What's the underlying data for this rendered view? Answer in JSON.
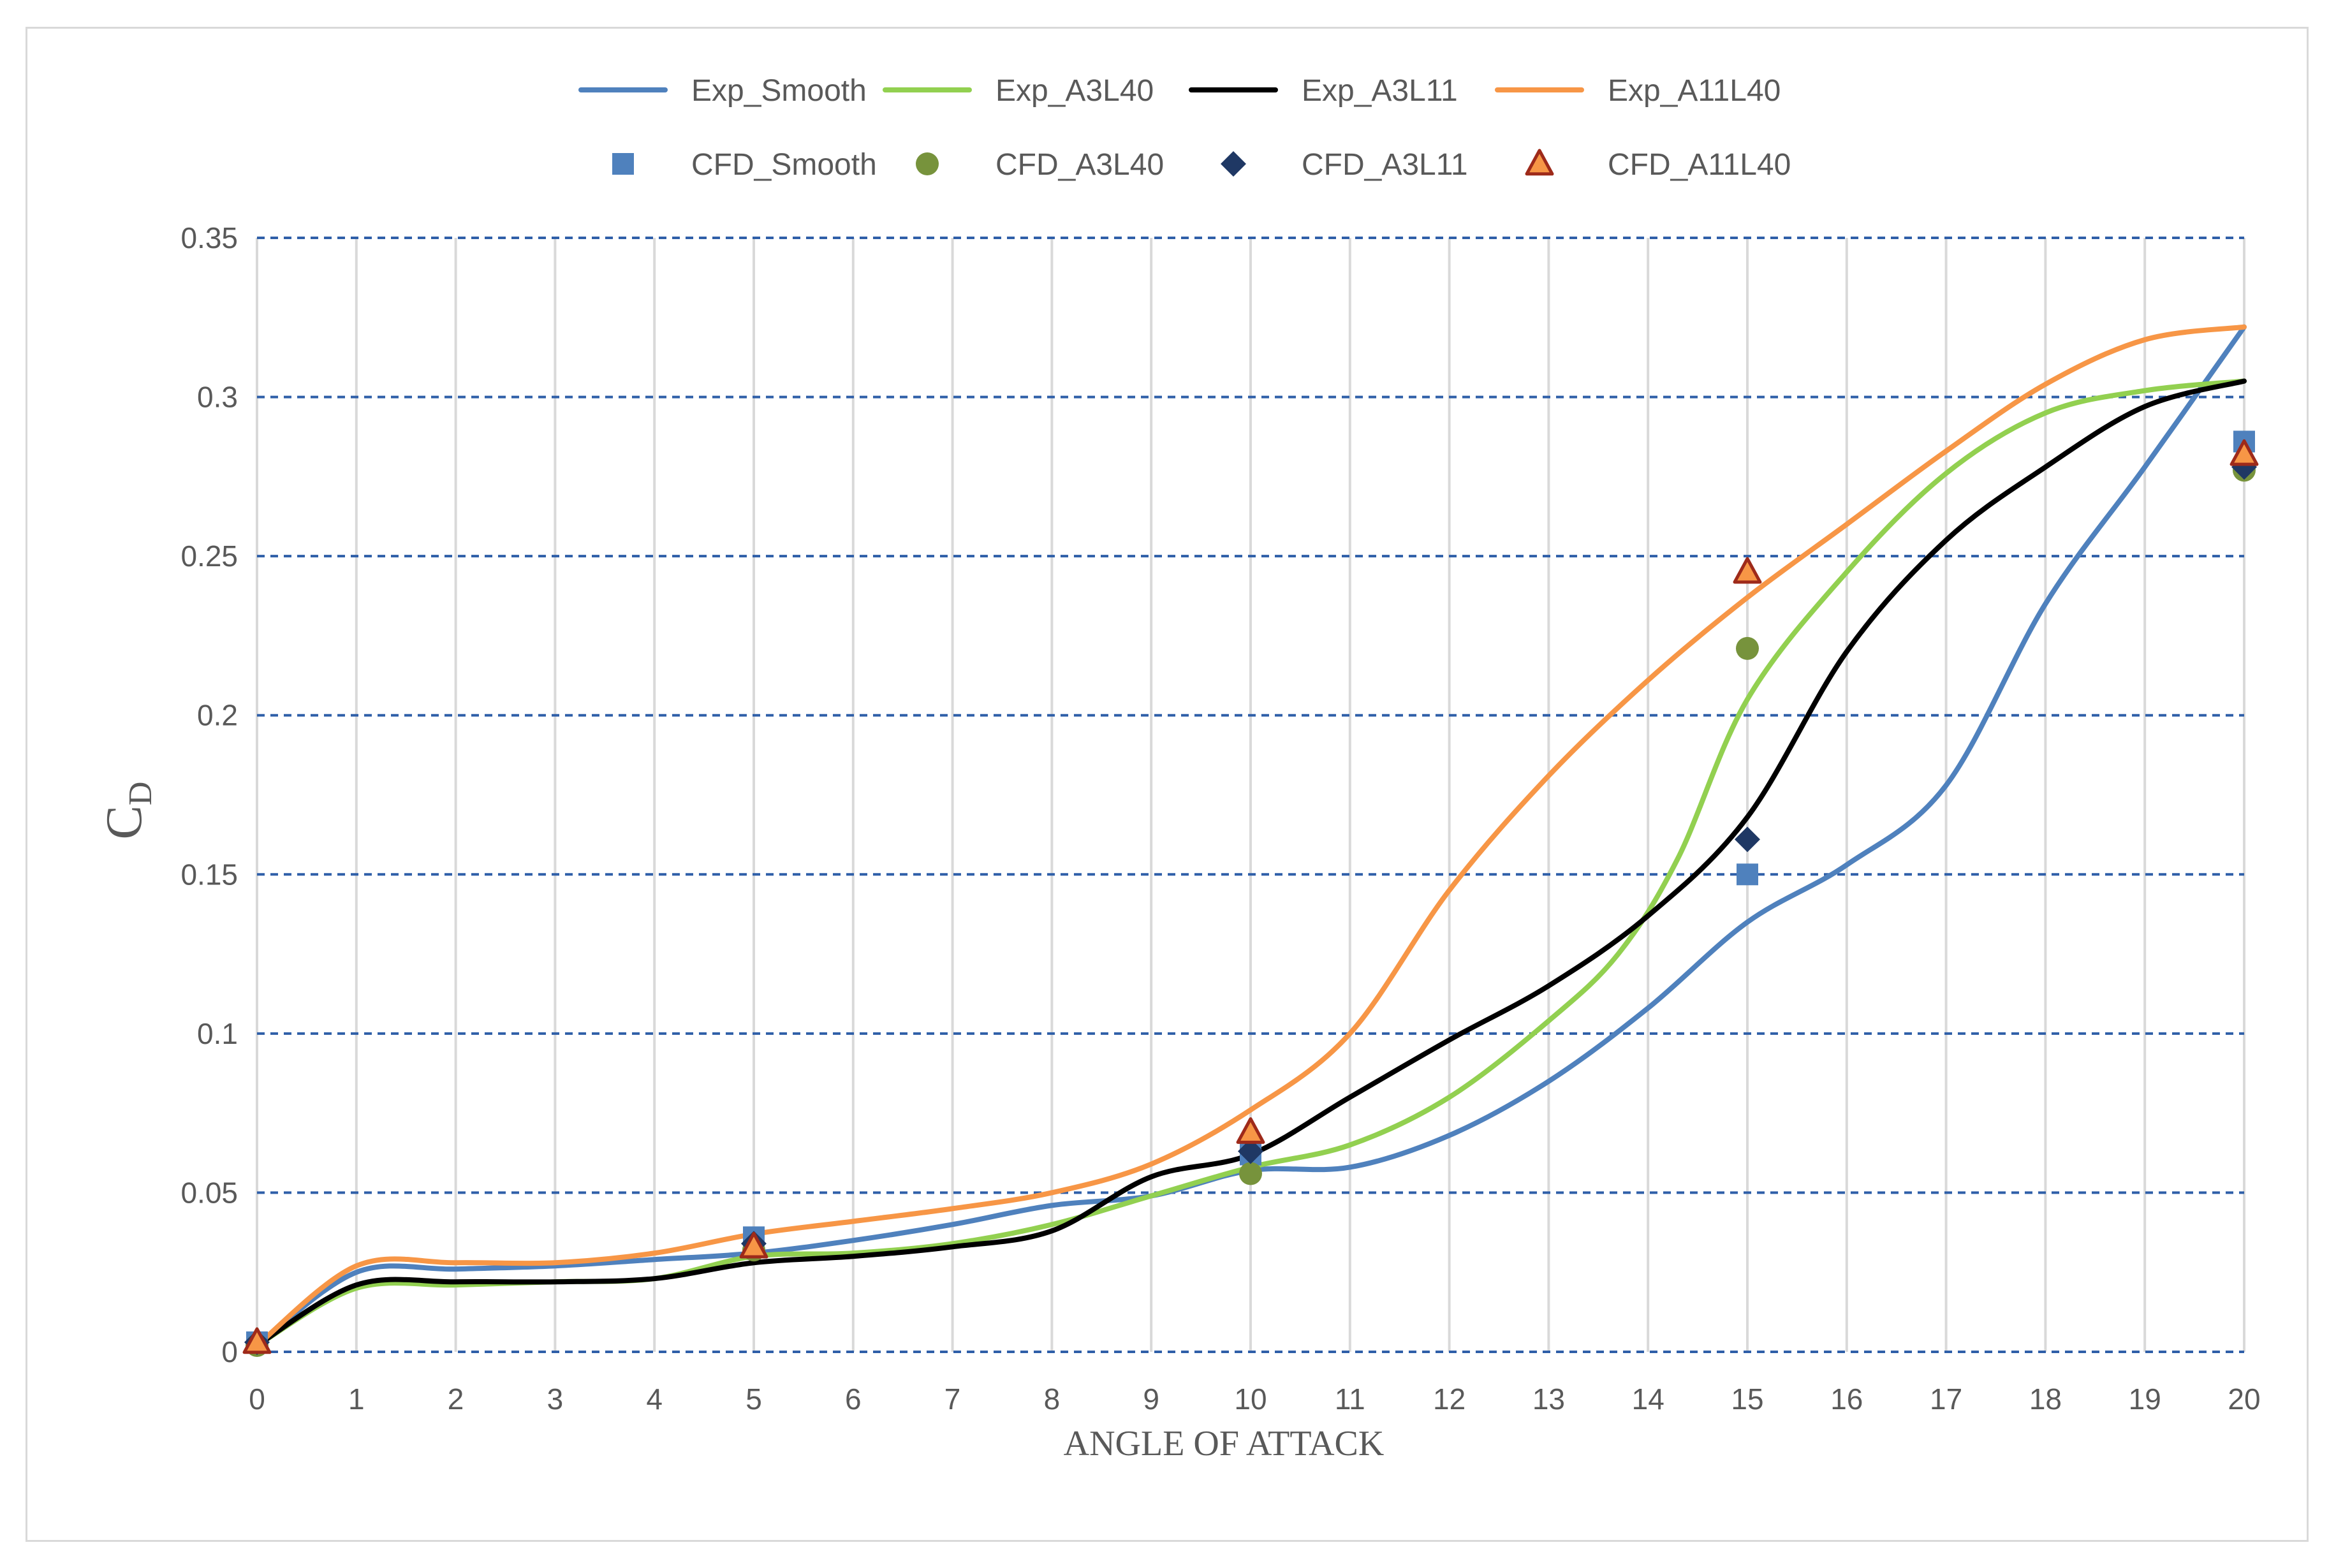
{
  "chart_data": {
    "type": "line",
    "xlabel": "ANGLE OF ATTACK",
    "ylabel": "C",
    "ylabel_subscript": "D",
    "xlim": [
      0,
      20
    ],
    "ylim": [
      0,
      0.35
    ],
    "x_ticks": [
      0,
      1,
      2,
      3,
      4,
      5,
      6,
      7,
      8,
      9,
      10,
      11,
      12,
      13,
      14,
      15,
      16,
      17,
      18,
      19,
      20
    ],
    "y_ticks": [
      0,
      0.05,
      0.1,
      0.15,
      0.2,
      0.25,
      0.3,
      0.35
    ],
    "y_tick_labels": [
      "0",
      "0.05",
      "0.1",
      "0.15",
      "0.2",
      "0.25",
      "0.3",
      "0.35"
    ],
    "grid": {
      "horizontal": "dashed",
      "vertical": "solid"
    },
    "legend_position": "top",
    "series": [
      {
        "name": "Exp_Smooth",
        "kind": "line",
        "color": "#4f81bd",
        "points": [
          [
            0,
            0.002
          ],
          [
            1,
            0.025
          ],
          [
            2,
            0.026
          ],
          [
            3,
            0.027
          ],
          [
            4,
            0.029
          ],
          [
            5,
            0.031
          ],
          [
            6,
            0.035
          ],
          [
            7,
            0.04
          ],
          [
            8,
            0.046
          ],
          [
            9,
            0.049
          ],
          [
            10,
            0.057
          ],
          [
            11,
            0.058
          ],
          [
            12,
            0.068
          ],
          [
            13,
            0.085
          ],
          [
            14,
            0.108
          ],
          [
            15,
            0.135
          ],
          [
            16,
            0.153
          ],
          [
            17,
            0.178
          ],
          [
            18,
            0.235
          ],
          [
            19,
            0.278
          ],
          [
            20,
            0.322
          ]
        ]
      },
      {
        "name": "Exp_A3L40",
        "kind": "line",
        "color": "#92d050",
        "points": [
          [
            0,
            0.002
          ],
          [
            1,
            0.02
          ],
          [
            2,
            0.021
          ],
          [
            3,
            0.022
          ],
          [
            4,
            0.023
          ],
          [
            5,
            0.03
          ],
          [
            6,
            0.031
          ],
          [
            7,
            0.034
          ],
          [
            8,
            0.04
          ],
          [
            9,
            0.049
          ],
          [
            10,
            0.058
          ],
          [
            11,
            0.065
          ],
          [
            12,
            0.08
          ],
          [
            13,
            0.104
          ],
          [
            13.7,
            0.125
          ],
          [
            14.3,
            0.155
          ],
          [
            15,
            0.205
          ],
          [
            16,
            0.245
          ],
          [
            17,
            0.276
          ],
          [
            18,
            0.295
          ],
          [
            19,
            0.302
          ],
          [
            20,
            0.305
          ]
        ]
      },
      {
        "name": "Exp_A3L11",
        "kind": "line",
        "color": "#000000",
        "points": [
          [
            0,
            0.002
          ],
          [
            1,
            0.021
          ],
          [
            2,
            0.022
          ],
          [
            3,
            0.022
          ],
          [
            4,
            0.023
          ],
          [
            5,
            0.028
          ],
          [
            6,
            0.03
          ],
          [
            7,
            0.033
          ],
          [
            8,
            0.038
          ],
          [
            9,
            0.055
          ],
          [
            10,
            0.062
          ],
          [
            11,
            0.08
          ],
          [
            12,
            0.098
          ],
          [
            13,
            0.115
          ],
          [
            14,
            0.137
          ],
          [
            15,
            0.168
          ],
          [
            16,
            0.22
          ],
          [
            17,
            0.255
          ],
          [
            18,
            0.278
          ],
          [
            19,
            0.297
          ],
          [
            20,
            0.305
          ]
        ]
      },
      {
        "name": "Exp_A11L40",
        "kind": "line",
        "color": "#f79646",
        "points": [
          [
            0,
            0.002
          ],
          [
            1,
            0.027
          ],
          [
            2,
            0.028
          ],
          [
            3,
            0.028
          ],
          [
            4,
            0.031
          ],
          [
            5,
            0.037
          ],
          [
            6,
            0.041
          ],
          [
            7,
            0.045
          ],
          [
            8,
            0.05
          ],
          [
            9,
            0.059
          ],
          [
            10,
            0.076
          ],
          [
            11,
            0.1
          ],
          [
            12,
            0.145
          ],
          [
            13,
            0.181
          ],
          [
            14,
            0.211
          ],
          [
            15,
            0.237
          ],
          [
            16,
            0.26
          ],
          [
            17,
            0.283
          ],
          [
            18,
            0.304
          ],
          [
            19,
            0.318
          ],
          [
            20,
            0.322
          ]
        ]
      },
      {
        "name": "CFD_Smooth",
        "kind": "marker",
        "marker": "square",
        "color": "#4f81bd",
        "points": [
          [
            0,
            0.003
          ],
          [
            5,
            0.036
          ],
          [
            10,
            0.062
          ],
          [
            15,
            0.15
          ],
          [
            20,
            0.286
          ]
        ]
      },
      {
        "name": "CFD_A3L40",
        "kind": "marker",
        "marker": "circle",
        "color": "#77933c",
        "points": [
          [
            0,
            0.002
          ],
          [
            5,
            0.032
          ],
          [
            10,
            0.056
          ],
          [
            15,
            0.221
          ],
          [
            20,
            0.277
          ]
        ]
      },
      {
        "name": "CFD_A3L11",
        "kind": "marker",
        "marker": "diamond",
        "color": "#1f3864",
        "points": [
          [
            0,
            0.003
          ],
          [
            5,
            0.034
          ],
          [
            10,
            0.063
          ],
          [
            15,
            0.161
          ],
          [
            20,
            0.278
          ]
        ]
      },
      {
        "name": "CFD_A11L40",
        "kind": "marker",
        "marker": "triangle",
        "color": "#f79646",
        "stroke": "#9e2a1a",
        "points": [
          [
            0,
            0.003
          ],
          [
            5,
            0.033
          ],
          [
            10,
            0.069
          ],
          [
            15,
            0.245
          ],
          [
            20,
            0.282
          ]
        ]
      }
    ]
  }
}
